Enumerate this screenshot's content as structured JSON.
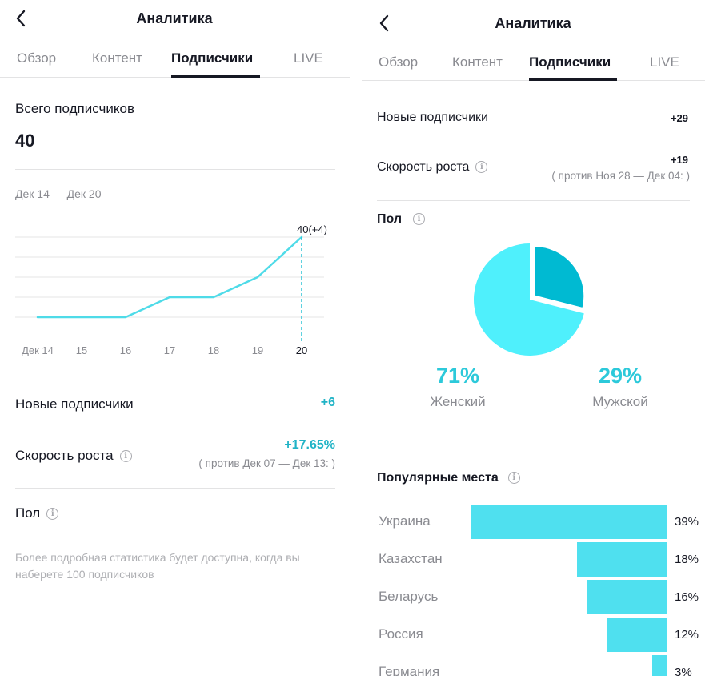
{
  "left": {
    "header": {
      "title": "Аналитика"
    },
    "tabs": [
      {
        "label": "Обзор",
        "active": false
      },
      {
        "label": "Контент",
        "active": false
      },
      {
        "label": "Подписчики",
        "active": true
      },
      {
        "label": "LIVE",
        "active": false
      }
    ],
    "total": {
      "label": "Всего подписчиков",
      "value": "40"
    },
    "date_range": "Дек 14 — Дек 20",
    "new_followers": {
      "label": "Новые подписчики",
      "value": "+6"
    },
    "growth": {
      "label": "Скорость роста",
      "value": "+17.65%",
      "compare": "( против Дек 07 — Дек 13: )"
    },
    "gender": {
      "label": "Пол"
    },
    "note_line1": "Более подробная статистика будет доступна, когда вы",
    "note_line2": "наберете 100 подписчиков"
  },
  "right": {
    "header": {
      "title": "Аналитика"
    },
    "tabs": [
      {
        "label": "Обзор",
        "active": false
      },
      {
        "label": "Контент",
        "active": false
      },
      {
        "label": "Подписчики",
        "active": true
      },
      {
        "label": "LIVE",
        "active": false
      }
    ],
    "new_followers": {
      "label": "Новые подписчики",
      "value": "+29"
    },
    "growth": {
      "label": "Скорость роста",
      "value": "+19",
      "compare": "( против Ноя 28 — Дек 04: )"
    },
    "gender": {
      "label": "Пол",
      "female": {
        "percent": "71%",
        "label": "Женский"
      },
      "male": {
        "percent": "29%",
        "label": "Мужской"
      }
    },
    "places": {
      "label": "Популярные места",
      "items": [
        {
          "name": "Украина",
          "percent": "39%"
        },
        {
          "name": "Казахстан",
          "percent": "18%"
        },
        {
          "name": "Беларусь",
          "percent": "16%"
        },
        {
          "name": "Россия",
          "percent": "12%"
        },
        {
          "name": "Германия",
          "percent": "3%"
        }
      ]
    }
  },
  "colors": {
    "accent": "#4fe0ef",
    "accent_dark": "#00b8d0",
    "text_accent": "#20b3c6"
  },
  "chart_data": [
    {
      "type": "line",
      "x": [
        "Дек 14",
        "15",
        "16",
        "17",
        "18",
        "19",
        "20"
      ],
      "series": [
        {
          "values": [
            36,
            36,
            36,
            37,
            37,
            38,
            40
          ]
        }
      ],
      "annotation": "40(+4)",
      "title": "",
      "xlabel": "",
      "ylabel": ""
    },
    {
      "type": "pie",
      "categories": [
        "Женский",
        "Мужской"
      ],
      "values": [
        71,
        29
      ]
    },
    {
      "type": "bar",
      "categories": [
        "Украина",
        "Казахстан",
        "Беларусь",
        "Россия",
        "Германия"
      ],
      "values": [
        39,
        18,
        16,
        12,
        3
      ]
    }
  ]
}
